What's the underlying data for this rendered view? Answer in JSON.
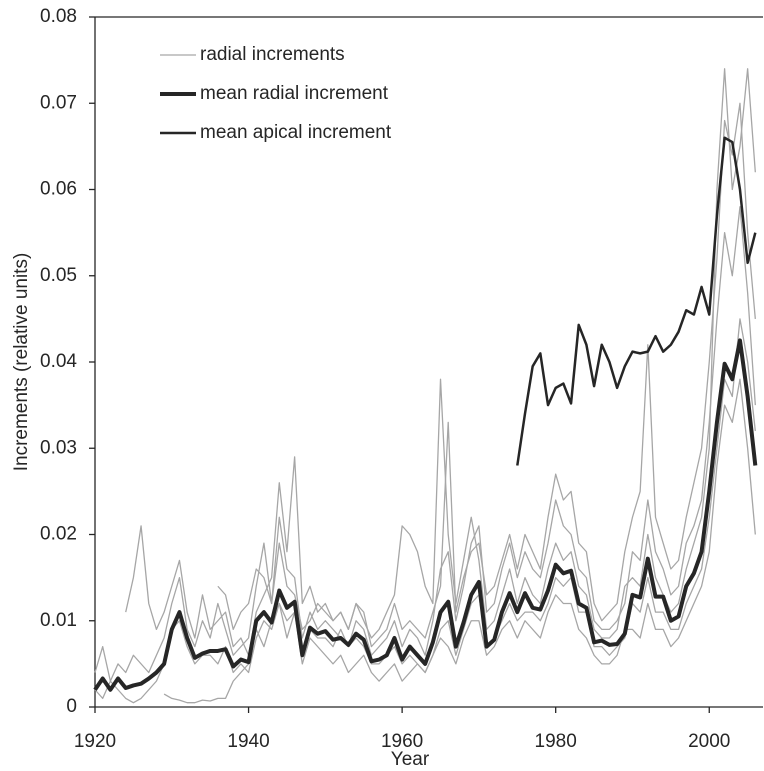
{
  "chart_data": {
    "type": "line",
    "y_label": "Increments (relative units)",
    "x_label": "Year",
    "x": [
      1920,
      1921,
      1922,
      1923,
      1924,
      1925,
      1926,
      1927,
      1928,
      1929,
      1930,
      1931,
      1932,
      1933,
      1934,
      1935,
      1936,
      1937,
      1938,
      1939,
      1940,
      1941,
      1942,
      1943,
      1944,
      1945,
      1946,
      1947,
      1948,
      1949,
      1950,
      1951,
      1952,
      1953,
      1954,
      1955,
      1956,
      1957,
      1958,
      1959,
      1960,
      1961,
      1962,
      1963,
      1964,
      1965,
      1966,
      1967,
      1968,
      1969,
      1970,
      1971,
      1972,
      1973,
      1974,
      1975,
      1976,
      1977,
      1978,
      1979,
      1980,
      1981,
      1982,
      1983,
      1984,
      1985,
      1986,
      1987,
      1988,
      1989,
      1990,
      1991,
      1992,
      1993,
      1994,
      1995,
      1996,
      1997,
      1998,
      1999,
      2000,
      2001,
      2002,
      2003,
      2004,
      2005,
      2006
    ],
    "xlim": [
      1920,
      2007
    ],
    "xticks": [
      1920,
      1940,
      1960,
      1980,
      2000
    ],
    "ylim": [
      0,
      0.08
    ],
    "yticks": [
      0,
      0.01,
      0.02,
      0.03,
      0.04,
      0.05,
      0.06,
      0.07,
      0.08
    ],
    "series": [
      {
        "name": "radial increments",
        "color": "#a6a6a6",
        "linewidth": 1.3,
        "values": [
          0.004,
          0.007,
          0.003,
          0.005,
          0.004,
          0.006,
          0.005,
          0.004,
          0.006,
          0.008,
          0.012,
          0.015,
          0.009,
          0.007,
          0.01,
          0.008,
          0.012,
          0.009,
          0.006,
          0.007,
          0.008,
          0.014,
          0.019,
          0.012,
          0.022,
          0.016,
          0.015,
          0.008,
          0.011,
          0.009,
          0.01,
          0.009,
          0.008,
          0.007,
          0.01,
          0.009,
          0.006,
          0.007,
          0.008,
          0.01,
          0.007,
          0.009,
          0.008,
          0.006,
          0.01,
          0.016,
          0.018,
          0.01,
          0.014,
          0.019,
          0.021,
          0.011,
          0.012,
          0.016,
          0.019,
          0.015,
          0.018,
          0.016,
          0.015,
          0.019,
          0.024,
          0.021,
          0.02,
          0.016,
          0.015,
          0.01,
          0.009,
          0.009,
          0.01,
          0.012,
          0.018,
          0.017,
          0.024,
          0.018,
          0.016,
          0.013,
          0.014,
          0.019,
          0.021,
          0.024,
          0.033,
          0.045,
          0.055,
          0.05,
          0.058,
          0.048,
          0.035
        ]
      },
      {
        "color": "#a6a6a6",
        "linewidth": 1.3,
        "values": [
          null,
          null,
          null,
          null,
          0.011,
          0.015,
          0.021,
          0.012,
          0.009,
          0.011,
          0.014,
          0.017,
          0.011,
          0.008,
          0.013,
          0.009,
          0.01,
          0.011,
          0.007,
          0.008,
          0.006,
          0.011,
          0.013,
          0.015,
          0.026,
          0.018,
          0.029,
          0.012,
          0.014,
          0.011,
          0.012,
          0.01,
          0.011,
          0.009,
          0.012,
          0.01,
          0.008,
          0.009,
          0.011,
          0.013,
          0.021,
          0.02,
          0.018,
          0.014,
          0.012,
          0.038,
          0.02,
          0.012,
          0.017,
          0.022,
          0.017,
          0.009,
          0.01,
          0.013,
          0.016,
          0.012,
          0.015,
          0.013,
          0.012,
          0.016,
          0.019,
          0.017,
          0.018,
          0.014,
          0.013,
          0.009,
          0.008,
          0.008,
          0.009,
          0.014,
          0.015,
          0.014,
          0.02,
          0.015,
          0.013,
          0.011,
          0.012,
          0.016,
          0.019,
          0.022,
          0.03,
          0.06,
          0.074,
          0.06,
          0.065,
          0.074,
          0.062
        ]
      },
      {
        "color": "#a6a6a6",
        "linewidth": 1.3,
        "values": [
          null,
          null,
          null,
          null,
          null,
          null,
          null,
          null,
          null,
          0.0015,
          0.001,
          0.0008,
          0.0005,
          0.0005,
          0.0008,
          0.0007,
          0.001,
          0.001,
          0.003,
          0.004,
          0.005,
          0.009,
          0.007,
          0.01,
          0.012,
          0.008,
          0.011,
          0.005,
          0.008,
          0.007,
          0.006,
          0.005,
          0.006,
          0.004,
          0.005,
          0.006,
          0.004,
          0.003,
          0.004,
          0.005,
          0.003,
          0.004,
          0.005,
          0.004,
          0.006,
          0.008,
          0.007,
          0.005,
          0.008,
          0.01,
          0.01,
          0.006,
          0.007,
          0.009,
          0.01,
          0.008,
          0.01,
          0.009,
          0.008,
          0.011,
          0.013,
          0.012,
          0.012,
          0.009,
          0.008,
          0.006,
          0.005,
          0.005,
          0.006,
          0.009,
          0.009,
          0.008,
          0.012,
          0.009,
          0.009,
          0.007,
          0.008,
          0.01,
          0.012,
          0.014,
          0.018,
          0.028,
          0.035,
          0.033,
          0.038,
          0.03,
          0.02
        ]
      },
      {
        "color": "#a6a6a6",
        "linewidth": 1.3,
        "values": [
          0.002,
          0.001,
          0.003,
          0.002,
          0.001,
          0.0005,
          0.001,
          0.002,
          0.003,
          0.005,
          0.009,
          0.01,
          0.007,
          0.005,
          0.006,
          0.006,
          0.005,
          0.007,
          0.004,
          0.005,
          0.004,
          0.008,
          0.01,
          0.009,
          0.012,
          0.01,
          0.011,
          0.006,
          0.009,
          0.008,
          0.008,
          0.007,
          0.009,
          0.007,
          0.008,
          0.007,
          0.005,
          0.005,
          0.006,
          0.007,
          0.005,
          0.006,
          0.005,
          0.004,
          0.006,
          0.009,
          0.01,
          0.006,
          0.009,
          0.012,
          0.013,
          0.007,
          0.008,
          0.01,
          0.012,
          0.01,
          0.011,
          0.011,
          0.01,
          0.012,
          0.015,
          0.014,
          0.015,
          0.011,
          0.011,
          0.007,
          0.007,
          0.006,
          0.007,
          0.008,
          0.012,
          0.011,
          0.015,
          0.011,
          0.011,
          0.009,
          0.009,
          0.012,
          0.014,
          0.016,
          0.022,
          0.03,
          0.038,
          0.036,
          0.045,
          0.04,
          0.032
        ]
      },
      {
        "color": "#a6a6a6",
        "linewidth": 1.3,
        "values": [
          null,
          null,
          null,
          null,
          null,
          null,
          null,
          null,
          null,
          null,
          null,
          null,
          null,
          null,
          null,
          null,
          0.014,
          0.013,
          0.009,
          0.011,
          0.012,
          0.016,
          0.015,
          0.012,
          0.019,
          0.014,
          0.013,
          0.009,
          0.01,
          0.012,
          0.011,
          0.01,
          0.011,
          0.009,
          0.012,
          0.011,
          0.007,
          0.008,
          0.009,
          0.012,
          0.009,
          0.01,
          0.009,
          0.008,
          0.011,
          0.014,
          0.033,
          0.011,
          0.015,
          0.018,
          0.019,
          0.013,
          0.014,
          0.017,
          0.02,
          0.016,
          0.02,
          0.018,
          0.016,
          0.022,
          0.027,
          0.024,
          0.025,
          0.019,
          0.018,
          0.012,
          0.01,
          0.011,
          0.012,
          0.018,
          0.022,
          0.025,
          0.042,
          0.022,
          0.019,
          0.016,
          0.017,
          0.022,
          0.026,
          0.03,
          0.04,
          0.052,
          0.068,
          0.064,
          0.07,
          0.055,
          0.045
        ]
      },
      {
        "name": "mean radial increment",
        "color": "#262626",
        "linewidth": 4,
        "values": [
          0.002,
          0.0033,
          0.002,
          0.0033,
          0.0022,
          0.0025,
          0.0027,
          0.0033,
          0.004,
          0.005,
          0.009,
          0.011,
          0.008,
          0.0057,
          0.0062,
          0.0065,
          0.0065,
          0.0067,
          0.0047,
          0.0055,
          0.0052,
          0.01,
          0.011,
          0.0098,
          0.0135,
          0.0115,
          0.0122,
          0.006,
          0.0092,
          0.0085,
          0.0088,
          0.0078,
          0.008,
          0.0072,
          0.0085,
          0.0078,
          0.0053,
          0.0055,
          0.006,
          0.008,
          0.0055,
          0.007,
          0.006,
          0.005,
          0.0075,
          0.011,
          0.0122,
          0.007,
          0.0098,
          0.013,
          0.0145,
          0.007,
          0.0078,
          0.011,
          0.0132,
          0.011,
          0.0132,
          0.0115,
          0.0113,
          0.0135,
          0.0165,
          0.0155,
          0.0158,
          0.012,
          0.0115,
          0.0075,
          0.0077,
          0.0072,
          0.0073,
          0.0085,
          0.013,
          0.0127,
          0.0172,
          0.0128,
          0.0128,
          0.01,
          0.0105,
          0.014,
          0.0155,
          0.018,
          0.025,
          0.033,
          0.0398,
          0.038,
          0.0425,
          0.036,
          0.028
        ]
      },
      {
        "name": "mean apical increment",
        "color": "#262626",
        "linewidth": 2.5,
        "values": [
          null,
          null,
          null,
          null,
          null,
          null,
          null,
          null,
          null,
          null,
          null,
          null,
          null,
          null,
          null,
          null,
          null,
          null,
          null,
          null,
          null,
          null,
          null,
          null,
          null,
          null,
          null,
          null,
          null,
          null,
          null,
          null,
          null,
          null,
          null,
          null,
          null,
          null,
          null,
          null,
          null,
          null,
          null,
          null,
          null,
          null,
          null,
          null,
          null,
          null,
          null,
          null,
          null,
          null,
          null,
          0.028,
          0.034,
          0.0395,
          0.041,
          0.035,
          0.037,
          0.0375,
          0.0352,
          0.0443,
          0.042,
          0.0372,
          0.042,
          0.04,
          0.037,
          0.0395,
          0.0412,
          0.041,
          0.0412,
          0.043,
          0.0412,
          0.042,
          0.0435,
          0.046,
          0.0455,
          0.0487,
          0.0455,
          0.057,
          0.066,
          0.0655,
          0.06,
          0.0515,
          0.055
        ]
      }
    ]
  }
}
